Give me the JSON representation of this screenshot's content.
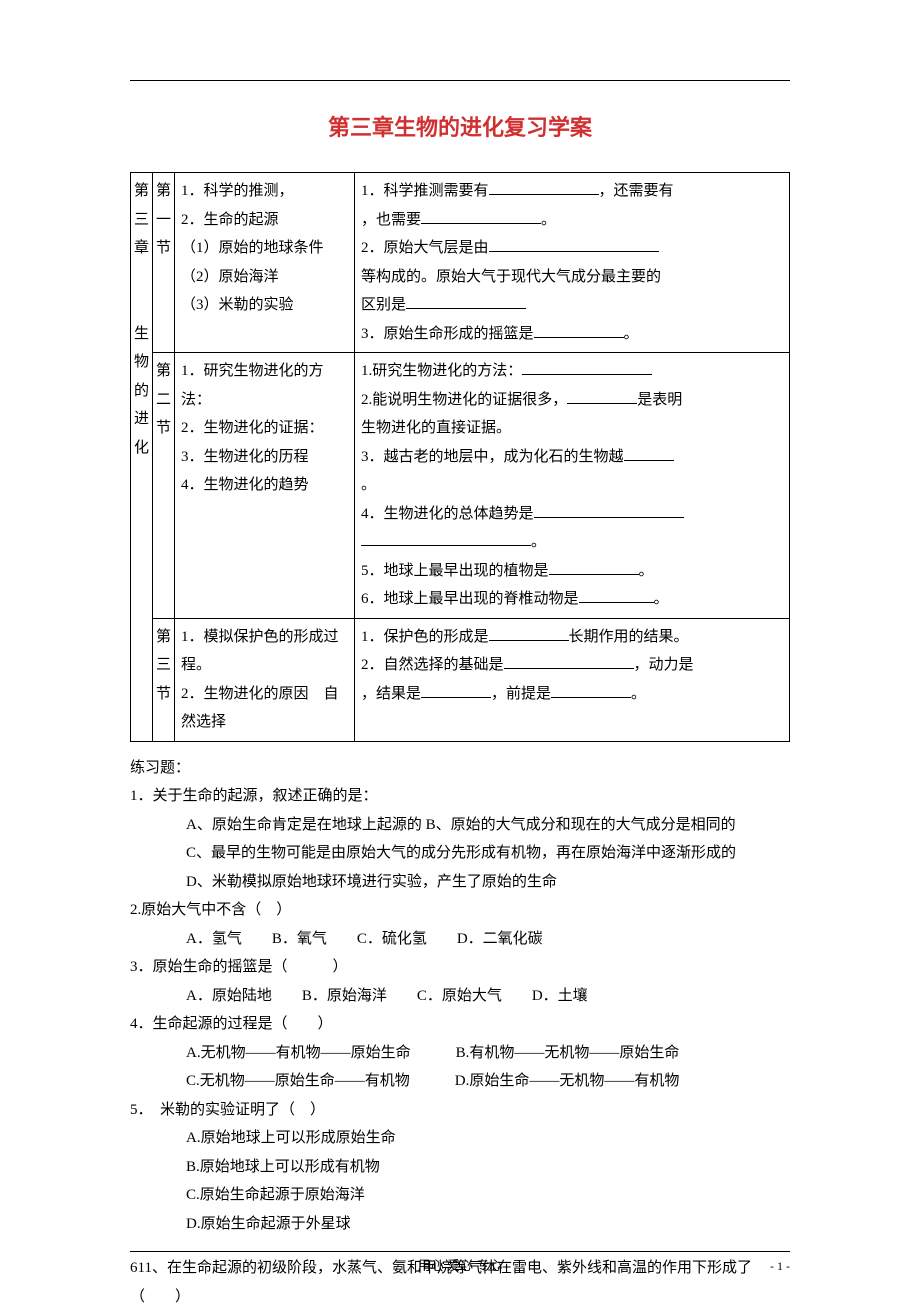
{
  "title": "第三章生物的进化复习学案",
  "table": {
    "leftCol": [
      "第",
      "三",
      "章",
      "",
      "",
      "生",
      "物",
      "的",
      "进",
      "化"
    ],
    "sections": [
      {
        "secLabel": [
          "第",
          "一",
          "节"
        ],
        "leftItems": [
          "1．科学的推测，",
          "2．生命的起源",
          "（1）原始的地球条件",
          "（2）原始海洋",
          "（3）米勒的实验"
        ],
        "rightItems": [
          {
            "pre": "1．科学推测需要有",
            "blankW": 110,
            "post": "，还需要有"
          },
          {
            "pre": "，也需要",
            "blankW": 120,
            "post": "。"
          },
          {
            "pre": "2．原始大气层是由",
            "blankW": 170,
            "post": ""
          },
          {
            "pre": "等构成的。原始大气于现代大气成分最主要的",
            "blankW": 0,
            "post": ""
          },
          {
            "pre": "区别是",
            "blankW": 120,
            "post": ""
          },
          {
            "pre": "3．原始生命形成的摇篮是",
            "blankW": 90,
            "post": "。"
          }
        ]
      },
      {
        "secLabel": [
          "第",
          "二",
          "节"
        ],
        "leftItems": [
          "1．研究生物进化的方法：",
          "2．生物进化的证据：",
          "3．生物进化的历程",
          "4．生物进化的趋势"
        ],
        "rightItems": [
          {
            "pre": "1.研究生物进化的方法：",
            "blankW": 130,
            "post": ""
          },
          {
            "pre": "2.能说明生物进化的证据很多，",
            "blankW": 70,
            "post": "是表明"
          },
          {
            "pre": "生物进化的直接证据。",
            "blankW": 0,
            "post": ""
          },
          {
            "pre": "3．越古老的地层中，成为化石的生物越",
            "blankW": 50,
            "post": ""
          },
          {
            "pre": "。",
            "blankW": 0,
            "post": ""
          },
          {
            "pre": "4．生物进化的总体趋势是",
            "blankW": 150,
            "post": ""
          },
          {
            "pre": "",
            "blankW": 170,
            "post": "。"
          },
          {
            "pre": "5．地球上最早出现的植物是",
            "blankW": 90,
            "post": "。"
          },
          {
            "pre": "6．地球上最早出现的脊椎动物是",
            "blankW": 75,
            "post": "。"
          }
        ]
      },
      {
        "secLabel": [
          "第",
          "三",
          "节"
        ],
        "leftItems": [
          "1．模拟保护色的形成过程。",
          "2．生物进化的原因　自然选择"
        ],
        "rightItems": [
          {
            "pre": "1．保护色的形成是",
            "blankW": 80,
            "post": "长期作用的结果。"
          },
          {
            "pre": "",
            "blankW": 0,
            "post": ""
          },
          {
            "pre": "2．自然选择的基础是",
            "blankW": 130,
            "post": "，动力是"
          },
          {
            "pre": "，结果是",
            "blankW": 70,
            "post": "，前提是",
            "blank2W": 80,
            "post2": "。"
          }
        ]
      }
    ]
  },
  "exercisesHeader": "练习题：",
  "questions": [
    {
      "stem": "1．关于生命的起源，叙述正确的是：",
      "options": [
        "A、原始生命肯定是在地球上起源的 B、原始的大气成分和现在的大气成分是相同的",
        "C、最早的生物可能是由原始大气的成分先形成有机物，再在原始海洋中逐渐形成的",
        "D、米勒模拟原始地球环境进行实验，产生了原始的生命"
      ]
    },
    {
      "stem": "2.原始大气中不含（　）",
      "optionsInline": "A．氢气　　B．氧气　　C．硫化氢　　D．二氧化碳"
    },
    {
      "stem": "3．原始生命的摇篮是（　　　）",
      "optionsInline": "A．原始陆地　　B．原始海洋　　C．原始大气　　D．土壤"
    },
    {
      "stem": "4．生命起源的过程是（　　）",
      "optionsTwoLine": [
        "A.无机物——有机物——原始生命　　　B.有机物——无机物——原始生命",
        "C.无机物——原始生命——有机物　　　D.原始生命——无机物——有机物"
      ]
    },
    {
      "stem": "5．　米勒的实验证明了（　）",
      "optionsCol": [
        "A.原始地球上可以形成原始生命",
        "B.原始地球上可以形成有机物",
        "C.原始生命起源于原始海洋",
        "D.原始生命起源于外星球"
      ]
    }
  ],
  "q6": "611、在生命起源的初级阶段，水蒸气、氨和甲烷等气体在雷电、紫外线和高温的作用下形成了（　　）",
  "footer": "用心 爱心 专心",
  "pageNum": "- 1 -"
}
